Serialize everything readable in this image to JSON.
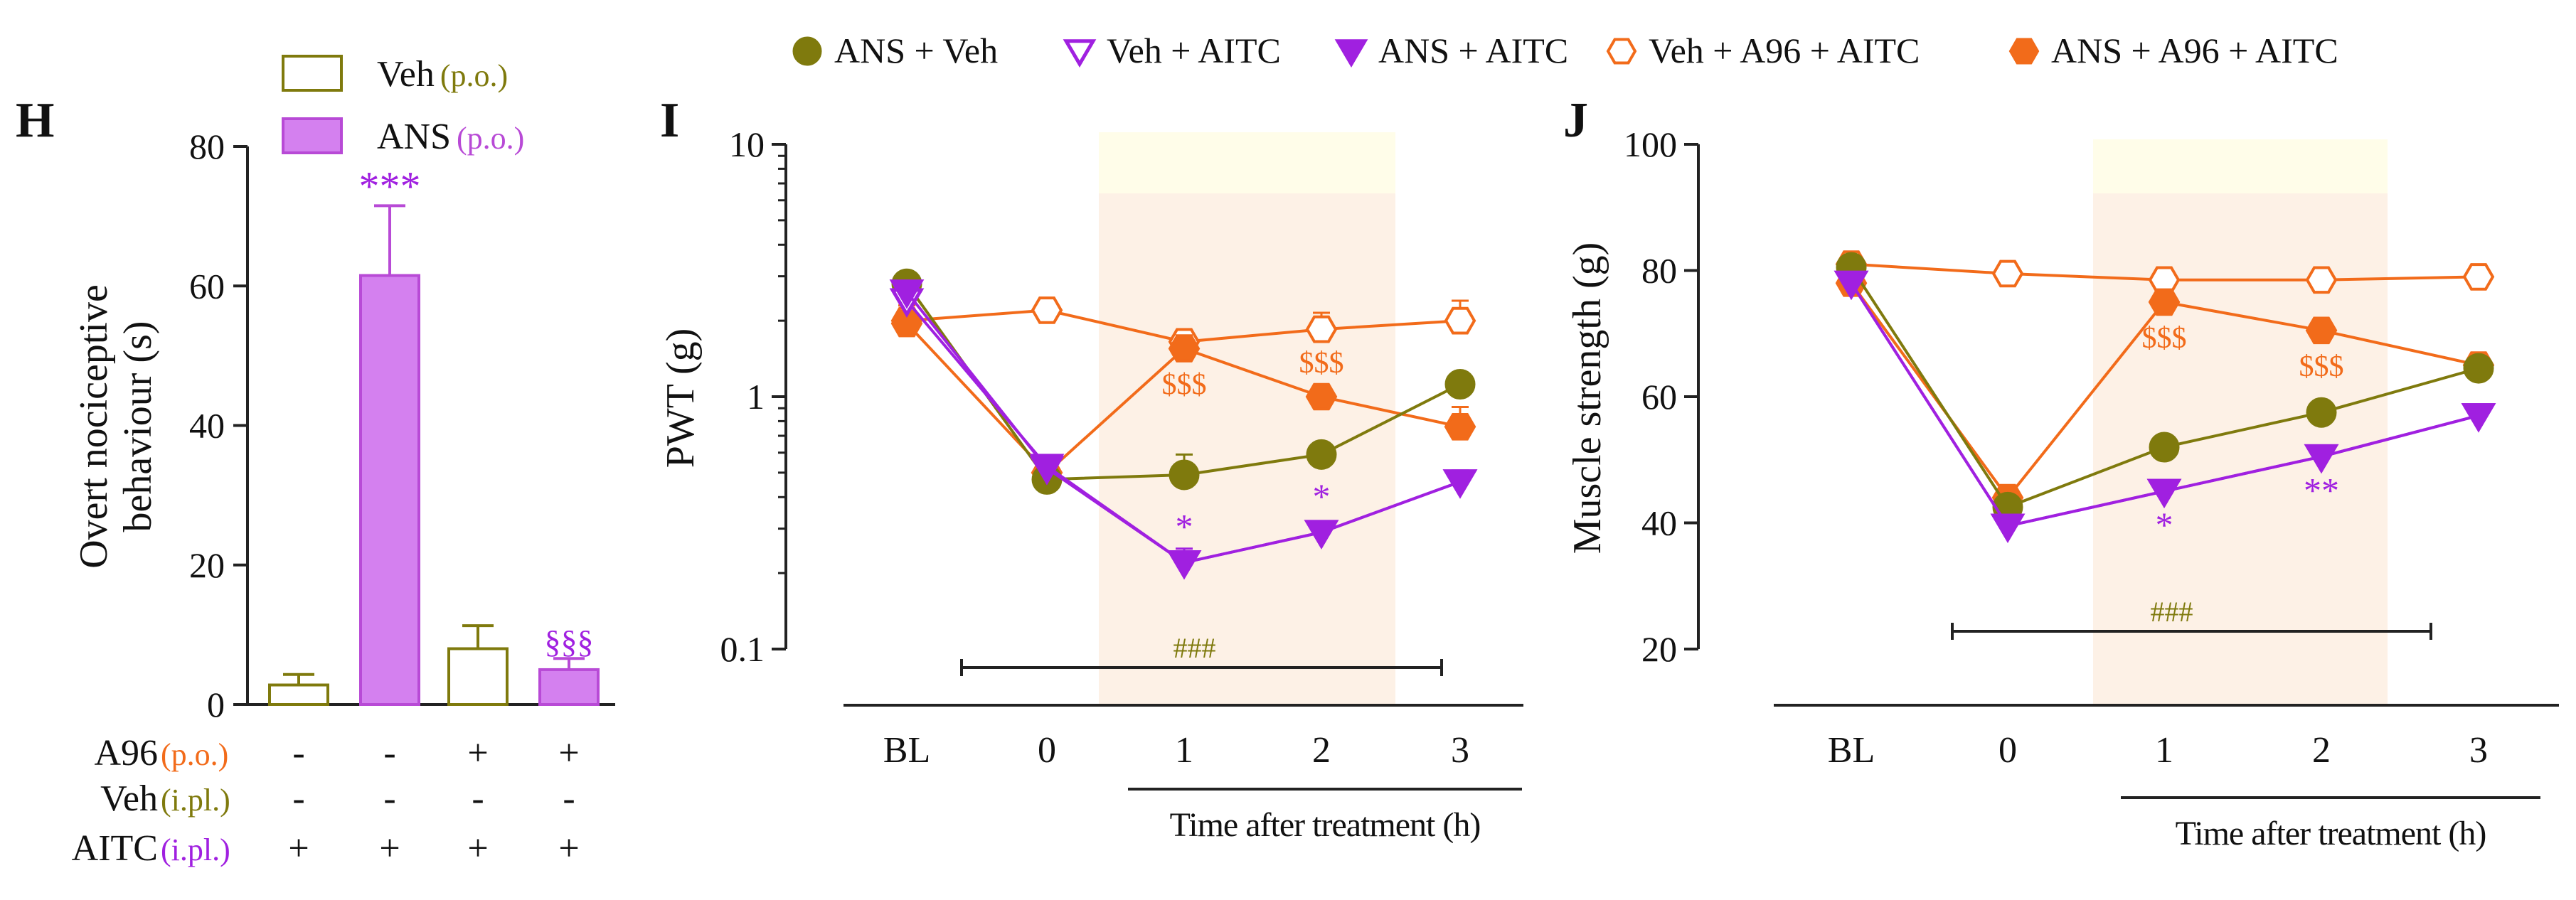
{
  "colors": {
    "veh": "#7f7a0d",
    "ans": "#b84ad6",
    "ans_fill": "#d480ef",
    "orange": "#f26b1a",
    "purple_sym": "#a020e0",
    "axis": "#222222",
    "band_orange": "#fdf1e6",
    "band_yellow": "#fffde9"
  },
  "legend_top": [
    {
      "label": "ANS + Veh",
      "symbol": "circle-filled",
      "color": "olive"
    },
    {
      "label": "Veh + AITC",
      "symbol": "triangle-open",
      "color": "purple"
    },
    {
      "label": "ANS + AITC",
      "symbol": "triangle-filled",
      "color": "purple"
    },
    {
      "label": "Veh + A96 + AITC",
      "symbol": "hexagon-open",
      "color": "orange"
    },
    {
      "label": "ANS + A96 + AITC",
      "symbol": "hexagon-filled",
      "color": "orange"
    }
  ],
  "chart_data": [
    {
      "panel": "H",
      "type": "bar",
      "ylabel_line1": "Overt  nociceptive",
      "ylabel_line2": "behaviour (s)",
      "ylim": [
        0,
        80
      ],
      "yticks": [
        "0",
        "20",
        "40",
        "60",
        "80"
      ],
      "legend": [
        {
          "name": "Veh",
          "route": "(p.o.)"
        },
        {
          "name": "ANS",
          "route": "(p.o.)"
        }
      ],
      "bars": [
        {
          "group": "Veh",
          "value": 2.8,
          "error": 1.5,
          "annotation": ""
        },
        {
          "group": "ANS",
          "value": 61.5,
          "error": 10,
          "annotation": "***"
        },
        {
          "group": "Veh",
          "value": 8,
          "error": 3.3,
          "annotation": ""
        },
        {
          "group": "ANS",
          "value": 5,
          "error": 1.6,
          "annotation": "§§§"
        }
      ],
      "treatment_rows": [
        {
          "name": "A96",
          "route": "(p.o.)",
          "signs": [
            "-",
            "-",
            "+",
            "+"
          ]
        },
        {
          "name": "Veh",
          "route": "(i.pl.)",
          "signs": [
            "-",
            "-",
            "-",
            "-"
          ]
        },
        {
          "name": "AITC",
          "route": "(i.pl.)",
          "signs": [
            "+",
            "+",
            "+",
            "+"
          ]
        }
      ]
    },
    {
      "panel": "I",
      "type": "line",
      "ylabel": "PWT (g)",
      "yscale": "log",
      "ylim": [
        0.1,
        10
      ],
      "yticks": [
        "0.1",
        "1",
        "10"
      ],
      "categories": [
        "BL",
        "0",
        "1",
        "2",
        "3"
      ],
      "xlabel": "Time after treatment (h)",
      "hash_annotation": "###",
      "series": [
        {
          "name": "ANS + Veh",
          "values": [
            2.8,
            0.47,
            0.49,
            0.59,
            1.12
          ],
          "errors": [
            0,
            0.06,
            0.1,
            0.05,
            0
          ]
        },
        {
          "name": "Veh + AITC",
          "values": [
            2.4,
            0.53,
            0.22,
            0.29,
            0.46
          ],
          "errors": [
            0,
            0,
            0,
            0,
            0
          ]
        },
        {
          "name": "ANS + AITC",
          "values": [
            2.6,
            0.52,
            0.22,
            0.29,
            0.46
          ],
          "errors": [
            0,
            0.04,
            0.03,
            0.03,
            0.05
          ]
        },
        {
          "name": "Veh + A96 + AITC",
          "values": [
            2.0,
            2.2,
            1.65,
            1.85,
            2.0
          ],
          "errors": [
            0.3,
            0.1,
            0.15,
            0.3,
            0.4
          ]
        },
        {
          "name": "ANS + A96 + AITC",
          "values": [
            1.95,
            0.5,
            1.55,
            1.0,
            0.76
          ],
          "errors": [
            0.2,
            0,
            0.2,
            0.1,
            0.15
          ]
        }
      ],
      "annotations": [
        {
          "x": "1",
          "near": 1.55,
          "text": "$$$",
          "color": "orange",
          "pos": "below"
        },
        {
          "x": "2",
          "near": 1.0,
          "text": "$$$",
          "color": "orange",
          "pos": "above"
        },
        {
          "x": "1",
          "near": 0.22,
          "text": "*",
          "color": "purple",
          "pos": "above"
        },
        {
          "x": "2",
          "near": 0.29,
          "text": "*",
          "color": "purple",
          "pos": "above"
        }
      ]
    },
    {
      "panel": "J",
      "type": "line",
      "ylabel": "Muscle strength (g)",
      "ylim": [
        20,
        100
      ],
      "yticks": [
        "20",
        "40",
        "60",
        "80",
        "100"
      ],
      "categories": [
        "BL",
        "0",
        "1",
        "2",
        "3"
      ],
      "xlabel": "Time after treatment (h)",
      "hash_annotation": "###",
      "series": [
        {
          "name": "ANS + Veh",
          "values": [
            80.5,
            42.5,
            52,
            57.5,
            64.5
          ],
          "errors": [
            0,
            0,
            0,
            0,
            0
          ]
        },
        {
          "name": "Veh + AITC",
          "values": [
            78,
            39.5,
            45,
            50.5,
            57
          ],
          "errors": [
            0,
            0,
            0,
            0,
            0
          ]
        },
        {
          "name": "ANS + AITC",
          "values": [
            78,
            39.5,
            45,
            50.5,
            57
          ],
          "errors": [
            0,
            0,
            0,
            0,
            0
          ]
        },
        {
          "name": "Veh + A96 + AITC",
          "values": [
            81,
            79.5,
            78.5,
            78.5,
            79
          ],
          "errors": [
            0,
            0,
            0,
            0,
            0
          ]
        },
        {
          "name": "ANS + A96 + AITC",
          "values": [
            78,
            44,
            75,
            70.5,
            65
          ],
          "errors": [
            0,
            0,
            0,
            0,
            0
          ]
        }
      ],
      "annotations": [
        {
          "x": "1",
          "near": 75,
          "text": "$$$",
          "color": "orange",
          "pos": "below"
        },
        {
          "x": "2",
          "near": 70.5,
          "text": "$$$",
          "color": "orange",
          "pos": "below"
        },
        {
          "x": "1",
          "near": 45,
          "text": "*",
          "color": "purple",
          "pos": "below"
        },
        {
          "x": "2",
          "near": 50.5,
          "text": "**",
          "color": "purple",
          "pos": "below"
        }
      ]
    }
  ]
}
